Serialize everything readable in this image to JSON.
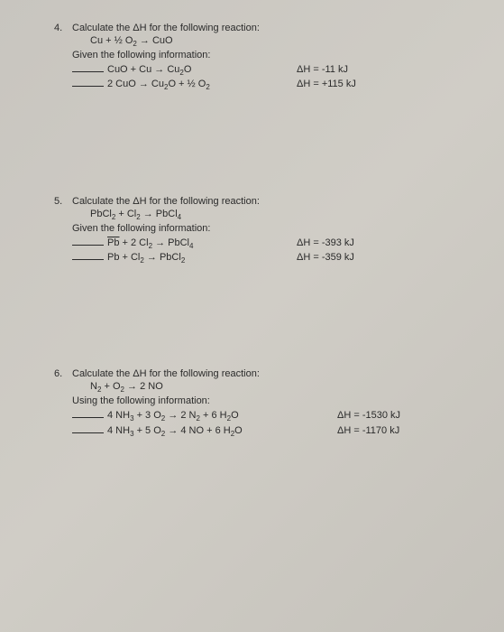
{
  "problems": [
    {
      "number": "4.",
      "title": "Calculate the ΔH for the following reaction:",
      "target": "Cu + ½ O₂ → CuO",
      "given_text": "Given the following information:",
      "equations": [
        {
          "eq": "CuO + Cu → Cu₂O",
          "dh": "ΔH = -11 kJ"
        },
        {
          "eq": "2 CuO → Cu₂O + ½ O₂",
          "dh": "ΔH = +115 kJ"
        }
      ]
    },
    {
      "number": "5.",
      "title": "Calculate the ΔH for the following reaction:",
      "target": "PbCl₂ + Cl₂ → PbCl₄",
      "given_text": "Given the following information:",
      "equations": [
        {
          "eq": "Pb + 2 Cl₂ → PbCl₄",
          "dh": "ΔH = -393 kJ"
        },
        {
          "eq": "Pb + Cl₂ → PbCl₂",
          "dh": "ΔH = -359 kJ"
        }
      ]
    },
    {
      "number": "6.",
      "title": "Calculate the ΔH for the following reaction:",
      "target": "N₂ + O₂ → 2 NO",
      "given_text": "Using the following information:",
      "equations": [
        {
          "eq": "4 NH₃ + 3 O₂ → 2 N₂ + 6 H₂O",
          "dh": "ΔH = -1530 kJ"
        },
        {
          "eq": "4 NH₃ + 5 O₂ → 4 NO + 6 H₂O",
          "dh": "ΔH = -1170 kJ"
        }
      ]
    }
  ]
}
